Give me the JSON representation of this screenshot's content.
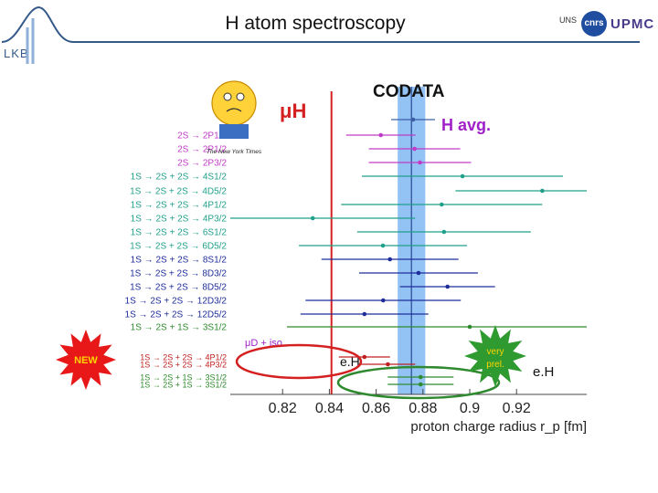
{
  "header": {
    "title": "H atom spectroscopy",
    "logo_text": "LKB",
    "logos": [
      "UNS",
      "cnrs",
      "UPMC"
    ]
  },
  "figure": {
    "newspaper": "The New York Times",
    "badge_new": "NEW",
    "badge_very_prel": "very prel.",
    "annotation_muH": "μH",
    "annotation_codata": "CODATA",
    "annotation_havg": "H avg.",
    "annotation_muD": "μD + iso",
    "annotation_eH_left": "e.H",
    "annotation_eH_right": "e.H"
  },
  "colors": {
    "muH": "#d42020",
    "codata_band": "#7fb8f2",
    "codata_line": "#3c5fa8",
    "havg": "#a020c8",
    "teal": "#20a08a",
    "navy": "#1e2d9a",
    "green": "#2f8a2f",
    "red_row": "#c02020"
  },
  "chart_data": {
    "type": "scatter",
    "xlabel": "proton charge radius r_p [fm]",
    "xlim": [
      0.8,
      0.95
    ],
    "xticks": [
      "0.82",
      "0.84",
      "0.86",
      "0.88",
      "0.9",
      "0.92"
    ],
    "vertical_references": [
      {
        "name": "μH",
        "value": 0.8409,
        "color": "#d42020"
      },
      {
        "name": "CODATA",
        "value": 0.8751,
        "band": [
          0.8692,
          0.881
        ],
        "color": "#3c5fa8"
      }
    ],
    "rows": [
      {
        "label": "H avg.",
        "value": 0.8758,
        "xerr": 0.0077,
        "color": "#3c5fa8"
      },
      {
        "label": "2S → 2P1/2",
        "value": 0.862,
        "xerr": 0.0,
        "color": "#c03cc8"
      },
      {
        "label": "2S → 2P1/2",
        "value": 0.8764,
        "xerr": 0.0,
        "color": "#c03cc8"
      },
      {
        "label": "2S → 2P3/2",
        "value": 0.8787,
        "xerr": 0.0,
        "color": "#c03cc8"
      },
      {
        "label": "1S → 2S + 2S → 4S1/2",
        "value": 0.8969,
        "xerr": 0.0,
        "color": "#20a08a"
      },
      {
        "label": "1S → 2S + 2S → 4D5/2",
        "value": 0.931,
        "xerr": 0.0,
        "color": "#20a08a"
      },
      {
        "label": "1S → 2S + 2S → 4P1/2",
        "value": 0.888,
        "xerr": 0.0,
        "color": "#20a08a"
      },
      {
        "label": "1S → 2S + 2S → 4P3/2",
        "value": 0.8329,
        "xerr": 0.0,
        "color": "#20a08a"
      },
      {
        "label": "1S → 2S + 2S → 6S1/2",
        "value": 0.889,
        "xerr": 0.0,
        "color": "#20a08a"
      },
      {
        "label": "1S → 2S + 2S → 6D5/2",
        "value": 0.8629,
        "xerr": 0.0,
        "color": "#20a08a"
      },
      {
        "label": "1S → 2S + 2S → 8S1/2",
        "value": 0.8659,
        "xerr": 0.0,
        "color": "#1e2d9a"
      },
      {
        "label": "1S → 2S + 2S → 8D3/2",
        "value": 0.8781,
        "xerr": 0.0,
        "color": "#1e2d9a"
      },
      {
        "label": "1S → 2S + 2S → 8D5/2",
        "value": 0.8905,
        "xerr": 0.0,
        "color": "#1e2d9a"
      },
      {
        "label": "1S → 2S + 2S → 12D3/2",
        "value": 0.863,
        "xerr": 0.0,
        "color": "#1e2d9a"
      },
      {
        "label": "1S → 2S + 2S → 12D5/2",
        "value": 0.855,
        "xerr": 0.0,
        "color": "#1e2d9a"
      },
      {
        "label": "1S → 2S + 1S → 3S1/2",
        "value": 0.9,
        "xerr": 0.0,
        "color": "#2f8a2f"
      },
      {
        "label": "1S → 2S + 2S → 4P1/2",
        "value": 0.855,
        "xerr": 0.0,
        "color": "#c02020"
      },
      {
        "label": "1S → 2S + 2S → 4P3/2",
        "value": 0.865,
        "xerr": 0.0,
        "color": "#c02020"
      },
      {
        "label": "1S → 2S + 1S → 3S1/2",
        "value": 0.879,
        "xerr": 0.0,
        "color": "#2f8a2f"
      },
      {
        "label": "1S → 2S + 1S → 3S1/2",
        "value": 0.879,
        "xerr": 0.0,
        "color": "#2f8a2f"
      }
    ]
  }
}
